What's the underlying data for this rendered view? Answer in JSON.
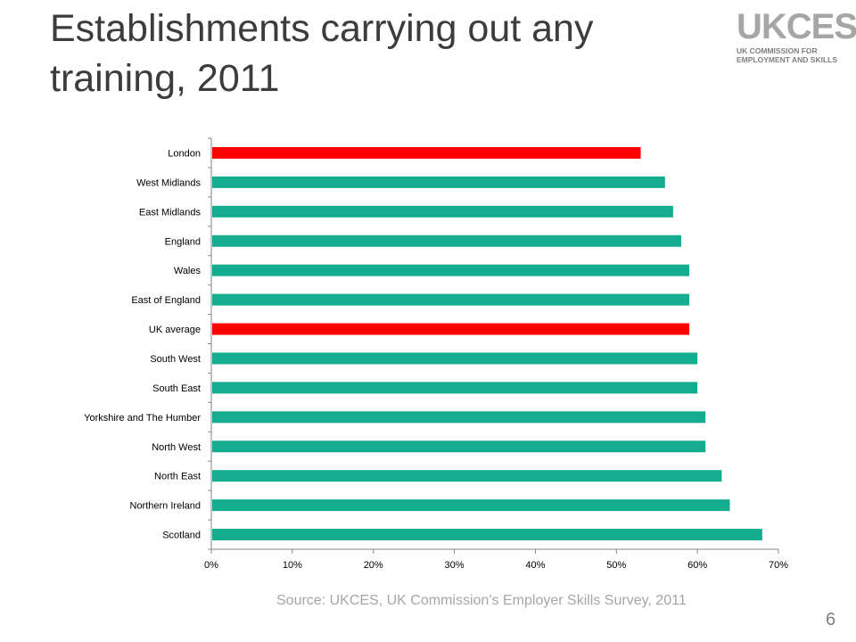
{
  "title": "Establishments carrying out any training, 2011",
  "logo": {
    "mark": "UKCES",
    "sub_line1": "UK COMMISSION FOR",
    "sub_line2": "EMPLOYMENT AND SKILLS"
  },
  "source": "Source: UKCES, UK Commission’s Employer Skills Survey, 2011",
  "page_number": "6",
  "colors": {
    "highlight": "#ff0000",
    "default": "#14ad8f",
    "axis": "#868686",
    "text": "#000000"
  },
  "chart_data": {
    "type": "bar",
    "orientation": "horizontal",
    "title": "",
    "xlabel": "",
    "ylabel": "",
    "xlim": [
      0,
      70
    ],
    "ticks": [
      "0%",
      "10%",
      "20%",
      "30%",
      "40%",
      "50%",
      "60%",
      "70%"
    ],
    "categories": [
      "London",
      "West Midlands",
      "East Midlands",
      "England",
      "Wales",
      "East of England",
      "UK average",
      "South West",
      "South East",
      "Yorkshire and The Humber",
      "North West",
      "North East",
      "Northern Ireland",
      "Scotland"
    ],
    "values": [
      53,
      56,
      57,
      58,
      59,
      59,
      59,
      60,
      60,
      61,
      61,
      63,
      64,
      68
    ],
    "highlighted": [
      "London",
      "UK average"
    ],
    "grid": false,
    "legend": "none"
  }
}
